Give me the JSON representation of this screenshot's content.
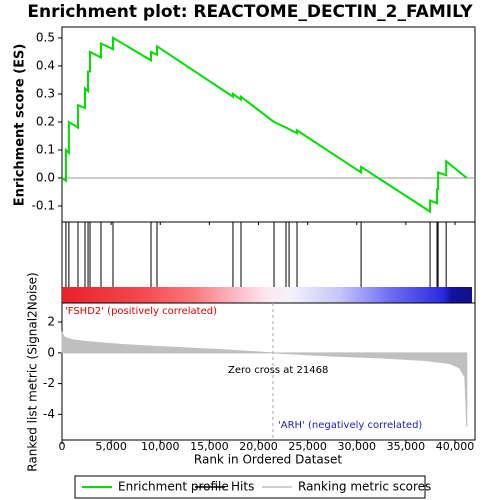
{
  "chart_data": {
    "type": "enrichment",
    "title": "Enrichment plot: REACTOME_DECTIN_2_FAMILY",
    "ylabel": "Enrichment score (ES)",
    "y2label": "Ranked list metric (Signal2Noise)",
    "xlabel": "Rank in Ordered Dataset",
    "xlim": [
      0,
      42035
    ],
    "xticks": [
      0,
      {
        "value": 5000,
        "label": "5,000"
      },
      {
        "value": 10000,
        "label": "10,000"
      },
      {
        "value": 15000,
        "label": "15,000"
      },
      {
        "value": 20000,
        "label": "20,000"
      },
      {
        "value": 25000,
        "label": "25,000"
      },
      {
        "value": 30000,
        "label": "30,000"
      },
      {
        "value": 35000,
        "label": "35,000"
      },
      {
        "value": 40000,
        "label": "40,000"
      }
    ],
    "ylim": [
      -0.157,
      0.539
    ],
    "yticks": [
      -0.1,
      {
        "value": 0,
        "label": "0.0"
      },
      0.1,
      0.2,
      0.3,
      0.4,
      0.5
    ],
    "y2lim": [
      -5.67,
      3.24
    ],
    "y2ticks": [
      -4,
      -2,
      0,
      2
    ],
    "series": [
      {
        "name": "Enrichment profile",
        "color": "#00e000",
        "x": [
          0,
          400,
          400,
          700,
          700,
          1630,
          1630,
          2340,
          2340,
          2650,
          2650,
          2850,
          2850,
          3970,
          3970,
          5190,
          5190,
          9060,
          9060,
          9670,
          9670,
          17400,
          17400,
          18220,
          18220,
          21580,
          22800,
          23920,
          23920,
          30440,
          30440,
          37460,
          37460,
          38170,
          38170,
          38280,
          38280,
          39100,
          39100,
          41200
        ],
        "values": [
          0,
          -0.01,
          0.1,
          0.09,
          0.2,
          0.18,
          0.26,
          0.25,
          0.32,
          0.31,
          0.38,
          0.38,
          0.45,
          0.43,
          0.48,
          0.46,
          0.5,
          0.42,
          0.45,
          0.44,
          0.47,
          0.29,
          0.3,
          0.28,
          0.29,
          0.2,
          0.18,
          0.16,
          0.17,
          0.02,
          0.04,
          -0.12,
          -0.08,
          -0.09,
          -0.04,
          -0.04,
          0.02,
          0.01,
          0.06,
          0
        ]
      },
      {
        "name": "Hits",
        "color": "#000000",
        "x": [
          400,
          700,
          1630,
          2340,
          2650,
          2850,
          3970,
          5190,
          9060,
          9670,
          17400,
          18220,
          21580,
          22800,
          23110,
          23920,
          30440,
          37460,
          38170,
          38280,
          39100
        ]
      },
      {
        "name": "Ranking metric scores",
        "color": "#c0c0c0",
        "x": [
          0,
          300,
          1000,
          3000,
          6000,
          10000,
          15000,
          21468,
          27000,
          33000,
          37000,
          39500,
          40500,
          41000,
          41200
        ],
        "values": [
          1.3,
          1.0,
          0.85,
          0.7,
          0.55,
          0.4,
          0.25,
          0,
          -0.2,
          -0.35,
          -0.5,
          -0.7,
          -1.0,
          -1.6,
          -4.8
        ]
      }
    ],
    "zero_cross": 21468,
    "annotations": [
      "'FSHD2' (positively correlated)",
      "Zero cross at 21468",
      "'ARH' (negatively correlated)"
    ]
  }
}
